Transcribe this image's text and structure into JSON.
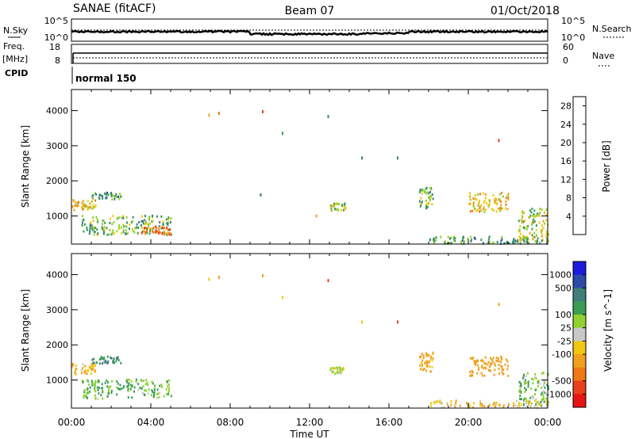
{
  "header": {
    "title": "SANAE (fitACF)",
    "beam": "Beam 07",
    "date": "01/Oct/2018"
  },
  "top_strip": {
    "nsky_label": "N.Sky",
    "nsearch_label": "N.Search",
    "tick_top": "10^5",
    "tick_bottom": "10^0",
    "freq_label": "Freq.",
    "freq_unit": "[MHz]",
    "freq_ticks": [
      "18",
      "8"
    ],
    "nave_label": "Nave",
    "nave_ticks": [
      "60",
      "0"
    ],
    "cpid_label": "CPID",
    "cpid_value": "normal 150"
  },
  "colors": {
    "power": [
      "#1c1cdc",
      "#2c4aa6",
      "#3f7f7a",
      "#3a9c55",
      "#8fd12e",
      "#f0c80f",
      "#f0a01e",
      "#f07814",
      "#e8401a",
      "#e81414"
    ],
    "velocity": [
      "#1c1cdc",
      "#2c4aa6",
      "#3f7f7a",
      "#3a9c55",
      "#8fd12e",
      "#c8c8c8",
      "#f0c80f",
      "#f0a01e",
      "#f07814",
      "#e8401a",
      "#e81414"
    ]
  },
  "chart_data": [
    {
      "type": "heatmap",
      "panel": "power",
      "xlabel": "",
      "ylabel": "Slant Range [km]",
      "xlim": [
        "00:00",
        "24:00"
      ],
      "ylim": [
        200,
        4600
      ],
      "yticks": [
        1000,
        2000,
        3000,
        4000
      ],
      "colorbar": {
        "label": "Power [dB]",
        "ticks": [
          "4",
          "8",
          "12",
          "16",
          "20",
          "24",
          "28"
        ],
        "range": [
          0,
          30
        ]
      },
      "regions": [
        {
          "t": [
            0.0,
            1.2
          ],
          "r": [
            1150,
            1450
          ],
          "v": 18
        },
        {
          "t": [
            0.5,
            5.0
          ],
          "r": [
            450,
            1000
          ],
          "v": 12
        },
        {
          "t": [
            3.5,
            5.0
          ],
          "r": [
            450,
            700
          ],
          "v": 22
        },
        {
          "t": [
            1.0,
            2.5
          ],
          "r": [
            1450,
            1650
          ],
          "v": 10
        },
        {
          "t": [
            13.0,
            13.8
          ],
          "r": [
            1150,
            1350
          ],
          "v": 14
        },
        {
          "t": [
            17.5,
            18.2
          ],
          "r": [
            1200,
            1800
          ],
          "v": 12
        },
        {
          "t": [
            20.0,
            22.0
          ],
          "r": [
            1100,
            1650
          ],
          "v": 18
        },
        {
          "t": [
            22.5,
            24.0
          ],
          "r": [
            250,
            1200
          ],
          "v": 14
        },
        {
          "t": [
            18.0,
            24.0
          ],
          "r": [
            200,
            400
          ],
          "v": 10
        }
      ],
      "points": [
        {
          "t": 6.9,
          "r": 3870,
          "v": 20
        },
        {
          "t": 7.4,
          "r": 3920,
          "v": 22
        },
        {
          "t": 9.6,
          "r": 3970,
          "v": 24
        },
        {
          "t": 10.6,
          "r": 3350,
          "v": 10
        },
        {
          "t": 12.9,
          "r": 3830,
          "v": 6
        },
        {
          "t": 14.6,
          "r": 2650,
          "v": 8
        },
        {
          "t": 16.4,
          "r": 2650,
          "v": 6
        },
        {
          "t": 21.5,
          "r": 3150,
          "v": 26
        },
        {
          "t": 9.5,
          "r": 1600,
          "v": 6
        },
        {
          "t": 12.3,
          "r": 1000,
          "v": 20
        }
      ]
    },
    {
      "type": "heatmap",
      "panel": "velocity",
      "xlabel": "Time UT",
      "ylabel": "Slant Range [km]",
      "xticks": [
        "00:00",
        "04:00",
        "08:00",
        "12:00",
        "16:00",
        "20:00",
        "00:00"
      ],
      "xlim": [
        "00:00",
        "24:00"
      ],
      "ylim": [
        200,
        4600
      ],
      "yticks": [
        1000,
        2000,
        3000,
        4000
      ],
      "colorbar": {
        "label": "Velocity [m s^-1]",
        "ticks": [
          "1000",
          "500",
          "100",
          "25",
          "-25",
          "-100",
          "-500",
          "-1000"
        ]
      },
      "regions": [
        {
          "t": [
            0.0,
            1.2
          ],
          "r": [
            1150,
            1450
          ],
          "v": -100
        },
        {
          "t": [
            0.5,
            5.0
          ],
          "r": [
            450,
            1000
          ],
          "v": 100
        },
        {
          "t": [
            1.0,
            2.5
          ],
          "r": [
            1450,
            1650
          ],
          "v": 300
        },
        {
          "t": [
            13.0,
            13.8
          ],
          "r": [
            1150,
            1350
          ],
          "v": 0
        },
        {
          "t": [
            17.5,
            18.2
          ],
          "r": [
            1200,
            1800
          ],
          "v": -150
        },
        {
          "t": [
            20.0,
            22.0
          ],
          "r": [
            1100,
            1650
          ],
          "v": -200
        },
        {
          "t": [
            22.5,
            24.0
          ],
          "r": [
            250,
            1200
          ],
          "v": 80
        },
        {
          "t": [
            18.0,
            24.0
          ],
          "r": [
            200,
            400
          ],
          "v": -80
        }
      ],
      "points": [
        {
          "t": 6.9,
          "r": 3870,
          "v": -100
        },
        {
          "t": 7.4,
          "r": 3920,
          "v": -200
        },
        {
          "t": 9.6,
          "r": 3970,
          "v": -300
        },
        {
          "t": 10.6,
          "r": 3350,
          "v": -60
        },
        {
          "t": 12.9,
          "r": 3830,
          "v": -700
        },
        {
          "t": 14.6,
          "r": 2650,
          "v": -50
        },
        {
          "t": 16.4,
          "r": 2650,
          "v": -800
        },
        {
          "t": 21.5,
          "r": 3150,
          "v": -300
        }
      ]
    }
  ]
}
